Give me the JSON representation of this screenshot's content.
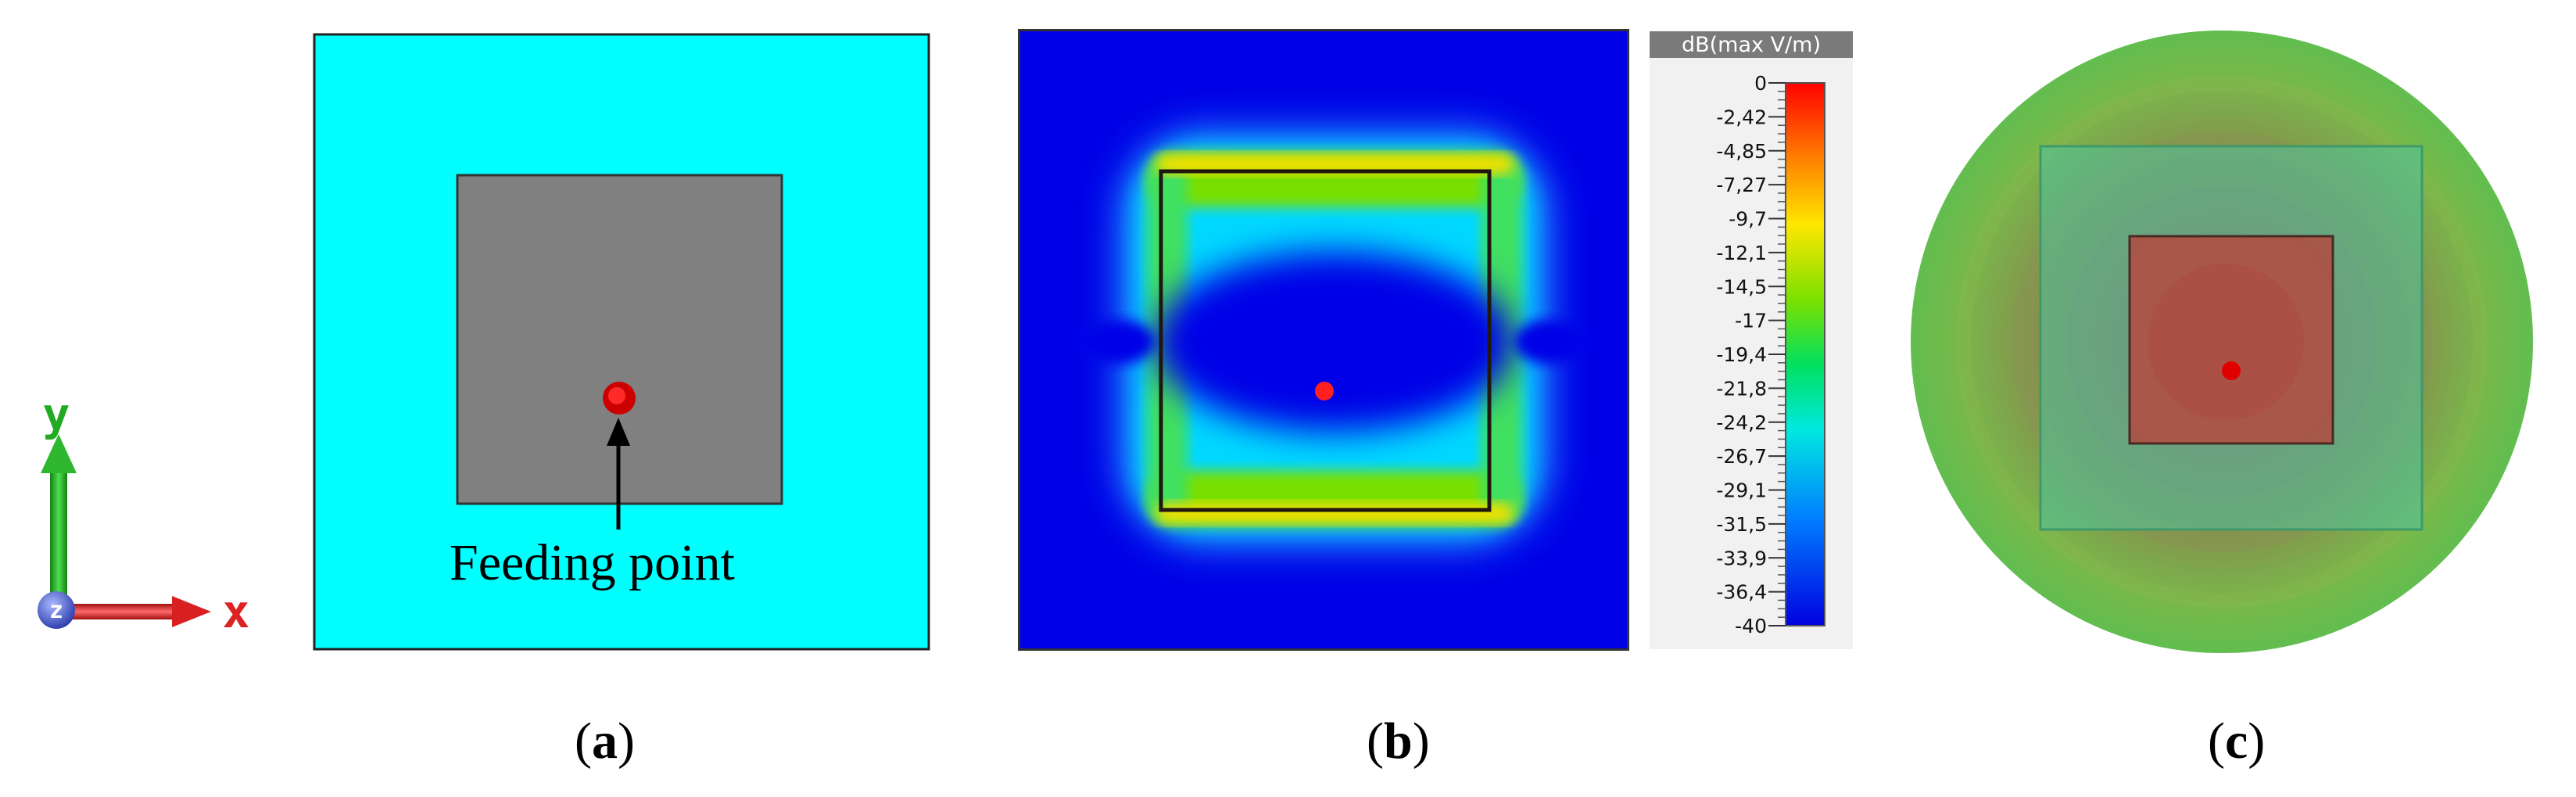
{
  "axes": {
    "y_label": "y",
    "z_label": "z",
    "x_label": "x"
  },
  "panel_a": {
    "annotation": "Feeding point",
    "caption_open": "(",
    "caption_letter": "a",
    "caption_close": ")"
  },
  "panel_b": {
    "colorbar_title": "dB(max V/m)",
    "colorbar_ticks": [
      "0",
      "-2,42",
      "-4,85",
      "-7,27",
      "-9,7",
      "-12,1",
      "-14,5",
      "-17",
      "-19,4",
      "-21,8",
      "-24,2",
      "-26,7",
      "-29,1",
      "-31,5",
      "-33,9",
      "-36,4",
      "-40"
    ],
    "caption_open": "(",
    "caption_letter": "b",
    "caption_close": ")"
  },
  "panel_c": {
    "caption_open": "(",
    "caption_letter": "c",
    "caption_close": ")"
  },
  "colors": {
    "substrate": "#00ffff",
    "patch": "#808080",
    "feed": "#e60000",
    "field_background": "#0000e6",
    "y_axis": "#22aa22",
    "x_axis": "#dd2222",
    "z_axis": "#3344cc"
  }
}
